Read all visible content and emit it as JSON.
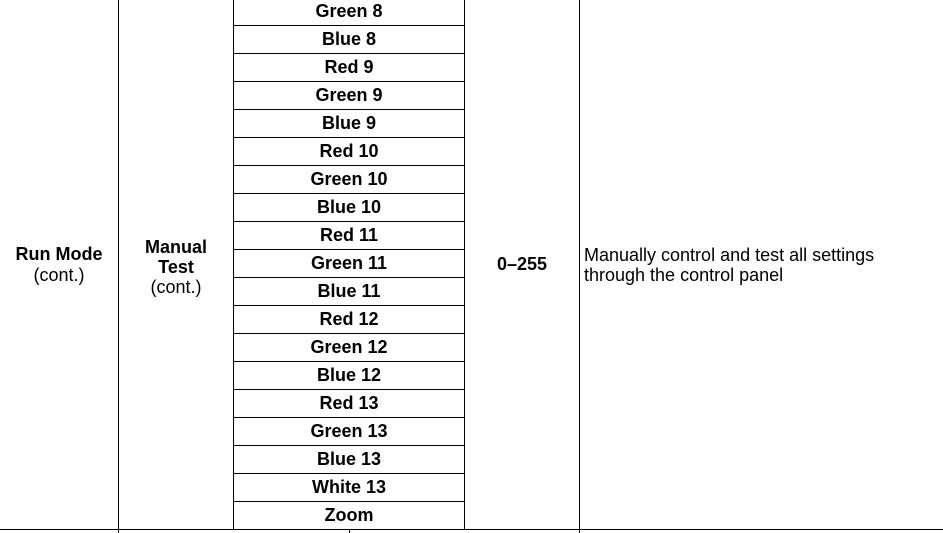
{
  "table": {
    "mode": {
      "title": "Run Mode",
      "note": "(cont.)"
    },
    "submode": {
      "title_line1": "Manual",
      "title_line2": "Test",
      "note": "(cont.)"
    },
    "channels": [
      "Green 8",
      "Blue 8",
      "Red 9",
      "Green 9",
      "Blue 9",
      "Red 10",
      "Green 10",
      "Blue 10",
      "Red 11",
      "Green 11",
      "Blue 11",
      "Red 12",
      "Green 12",
      "Blue 12",
      "Red 13",
      "Green 13",
      "Blue 13",
      "White 13",
      "Zoom"
    ],
    "range": "0–255",
    "description_line1": "Manually control and test all settings",
    "description_line2": "through the control panel"
  }
}
